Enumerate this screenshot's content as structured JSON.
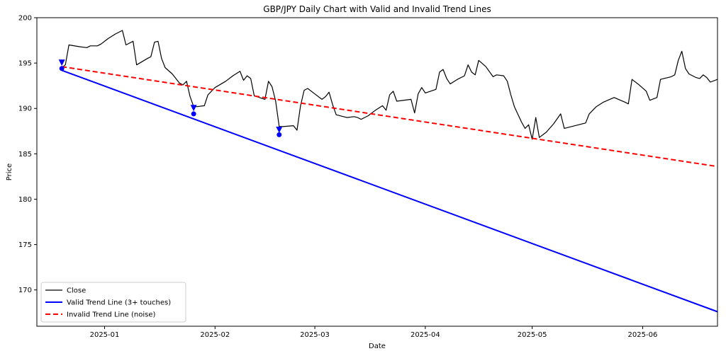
{
  "chart_data": {
    "type": "line",
    "title": "GBP/JPY Daily Chart with Valid and Invalid Trend Lines",
    "xlabel": "Date",
    "ylabel": "Price",
    "xlim": [
      "2024-12-13",
      "2025-06-22"
    ],
    "ylim": [
      166.0,
      200.0
    ],
    "x_ticks": [
      "2025-01-01",
      "2025-02-01",
      "2025-03-01",
      "2025-04-01",
      "2025-05-01",
      "2025-06-01"
    ],
    "x_tick_labels": [
      "2025-01",
      "2025-02",
      "2025-03",
      "2025-04",
      "2025-05",
      "2025-06"
    ],
    "y_ticks": [
      170,
      175,
      180,
      185,
      190,
      195,
      200
    ],
    "legend": "lower-left",
    "grid": false,
    "series": [
      {
        "name": "Close",
        "style": "solid",
        "color": "#000000",
        "points": [
          [
            "2024-12-20",
            194.5
          ],
          [
            "2024-12-21",
            194.8
          ],
          [
            "2024-12-22",
            197.0
          ],
          [
            "2024-12-25",
            196.8
          ],
          [
            "2024-12-27",
            196.7
          ],
          [
            "2024-12-28",
            196.9
          ],
          [
            "2024-12-30",
            196.9
          ],
          [
            "2024-12-31",
            197.1
          ],
          [
            "2025-01-02",
            197.7
          ],
          [
            "2025-01-04",
            198.2
          ],
          [
            "2025-01-06",
            198.6
          ],
          [
            "2025-01-07",
            197.0
          ],
          [
            "2025-01-09",
            197.4
          ],
          [
            "2025-01-10",
            194.8
          ],
          [
            "2025-01-13",
            195.5
          ],
          [
            "2025-01-14",
            195.7
          ],
          [
            "2025-01-15",
            197.3
          ],
          [
            "2025-01-16",
            197.4
          ],
          [
            "2025-01-17",
            195.5
          ],
          [
            "2025-01-18",
            194.5
          ],
          [
            "2025-01-20",
            193.8
          ],
          [
            "2025-01-21",
            193.3
          ],
          [
            "2025-01-22",
            192.8
          ],
          [
            "2025-01-23",
            192.6
          ],
          [
            "2025-01-24",
            193.0
          ],
          [
            "2025-01-25",
            191.3
          ],
          [
            "2025-01-26",
            190.2
          ],
          [
            "2025-01-27",
            190.2
          ],
          [
            "2025-01-29",
            190.3
          ],
          [
            "2025-01-30",
            191.5
          ],
          [
            "2025-02-01",
            192.3
          ],
          [
            "2025-02-04",
            193.0
          ],
          [
            "2025-02-06",
            193.6
          ],
          [
            "2025-02-08",
            194.1
          ],
          [
            "2025-02-09",
            193.1
          ],
          [
            "2025-02-10",
            193.6
          ],
          [
            "2025-02-11",
            193.3
          ],
          [
            "2025-02-12",
            191.4
          ],
          [
            "2025-02-15",
            191.0
          ],
          [
            "2025-02-16",
            193.0
          ],
          [
            "2025-02-17",
            192.4
          ],
          [
            "2025-02-18",
            190.8
          ],
          [
            "2025-02-19",
            188.0
          ],
          [
            "2025-02-20",
            188.0
          ],
          [
            "2025-02-23",
            188.1
          ],
          [
            "2025-02-24",
            187.6
          ],
          [
            "2025-02-25",
            190.3
          ],
          [
            "2025-02-26",
            192.0
          ],
          [
            "2025-02-27",
            192.2
          ],
          [
            "2025-03-01",
            191.6
          ],
          [
            "2025-03-03",
            191.0
          ],
          [
            "2025-03-04",
            191.3
          ],
          [
            "2025-03-05",
            191.8
          ],
          [
            "2025-03-06",
            190.4
          ],
          [
            "2025-03-07",
            189.3
          ],
          [
            "2025-03-10",
            189.0
          ],
          [
            "2025-03-12",
            189.1
          ],
          [
            "2025-03-13",
            189.0
          ],
          [
            "2025-03-14",
            188.8
          ],
          [
            "2025-03-16",
            189.2
          ],
          [
            "2025-03-18",
            189.8
          ],
          [
            "2025-03-20",
            190.3
          ],
          [
            "2025-03-21",
            189.8
          ],
          [
            "2025-03-22",
            191.5
          ],
          [
            "2025-03-23",
            191.9
          ],
          [
            "2025-03-24",
            190.8
          ],
          [
            "2025-03-28",
            191.0
          ],
          [
            "2025-03-29",
            189.5
          ],
          [
            "2025-03-30",
            191.6
          ],
          [
            "2025-03-31",
            192.3
          ],
          [
            "2025-04-01",
            191.7
          ],
          [
            "2025-04-04",
            192.1
          ],
          [
            "2025-04-05",
            194.0
          ],
          [
            "2025-04-06",
            194.3
          ],
          [
            "2025-04-07",
            193.3
          ],
          [
            "2025-04-08",
            192.7
          ],
          [
            "2025-04-10",
            193.2
          ],
          [
            "2025-04-12",
            193.6
          ],
          [
            "2025-04-13",
            194.8
          ],
          [
            "2025-04-14",
            194.0
          ],
          [
            "2025-04-15",
            193.7
          ],
          [
            "2025-04-16",
            195.3
          ],
          [
            "2025-04-18",
            194.6
          ],
          [
            "2025-04-20",
            193.5
          ],
          [
            "2025-04-21",
            193.7
          ],
          [
            "2025-04-23",
            193.6
          ],
          [
            "2025-04-24",
            193.0
          ],
          [
            "2025-04-25",
            191.5
          ],
          [
            "2025-04-26",
            190.2
          ],
          [
            "2025-04-28",
            188.5
          ],
          [
            "2025-04-29",
            187.8
          ],
          [
            "2025-04-30",
            188.2
          ],
          [
            "2025-05-01",
            186.6
          ],
          [
            "2025-05-02",
            189.0
          ],
          [
            "2025-05-03",
            186.8
          ],
          [
            "2025-05-05",
            187.4
          ],
          [
            "2025-05-07",
            188.3
          ],
          [
            "2025-05-09",
            189.4
          ],
          [
            "2025-05-10",
            187.8
          ],
          [
            "2025-05-16",
            188.4
          ],
          [
            "2025-05-17",
            189.4
          ],
          [
            "2025-05-19",
            190.2
          ],
          [
            "2025-05-21",
            190.7
          ],
          [
            "2025-05-24",
            191.2
          ],
          [
            "2025-05-27",
            190.7
          ],
          [
            "2025-05-28",
            190.5
          ],
          [
            "2025-05-29",
            193.2
          ],
          [
            "2025-05-31",
            192.6
          ],
          [
            "2025-06-02",
            191.9
          ],
          [
            "2025-06-03",
            190.9
          ],
          [
            "2025-06-05",
            191.2
          ],
          [
            "2025-06-06",
            193.2
          ],
          [
            "2025-06-09",
            193.5
          ],
          [
            "2025-06-10",
            193.7
          ],
          [
            "2025-06-11",
            195.3
          ],
          [
            "2025-06-12",
            196.3
          ],
          [
            "2025-06-13",
            194.4
          ],
          [
            "2025-06-14",
            193.8
          ],
          [
            "2025-06-16",
            193.4
          ],
          [
            "2025-06-17",
            193.3
          ],
          [
            "2025-06-18",
            193.7
          ],
          [
            "2025-06-19",
            193.4
          ],
          [
            "2025-06-20",
            192.9
          ],
          [
            "2025-06-22",
            193.2
          ]
        ]
      },
      {
        "name": "Valid Trend Line (3+ touches)",
        "style": "solid",
        "color": "#0000ff",
        "points": [
          [
            "2024-12-20",
            194.2
          ],
          [
            "2025-06-22",
            167.6
          ]
        ]
      },
      {
        "name": "Invalid Trend Line (noise)",
        "style": "dashed",
        "color": "#ff0000",
        "points": [
          [
            "2024-12-20",
            194.6
          ],
          [
            "2025-06-22",
            183.6
          ]
        ]
      }
    ],
    "touch_points": [
      {
        "x": "2024-12-20",
        "y": 194.4
      },
      {
        "x": "2025-01-26",
        "y": 189.4
      },
      {
        "x": "2025-02-19",
        "y": 187.1
      }
    ],
    "touch_markers": [
      {
        "x": "2024-12-20",
        "y": 195.0
      },
      {
        "x": "2025-01-26",
        "y": 190.0
      },
      {
        "x": "2025-02-19",
        "y": 187.6
      }
    ]
  }
}
